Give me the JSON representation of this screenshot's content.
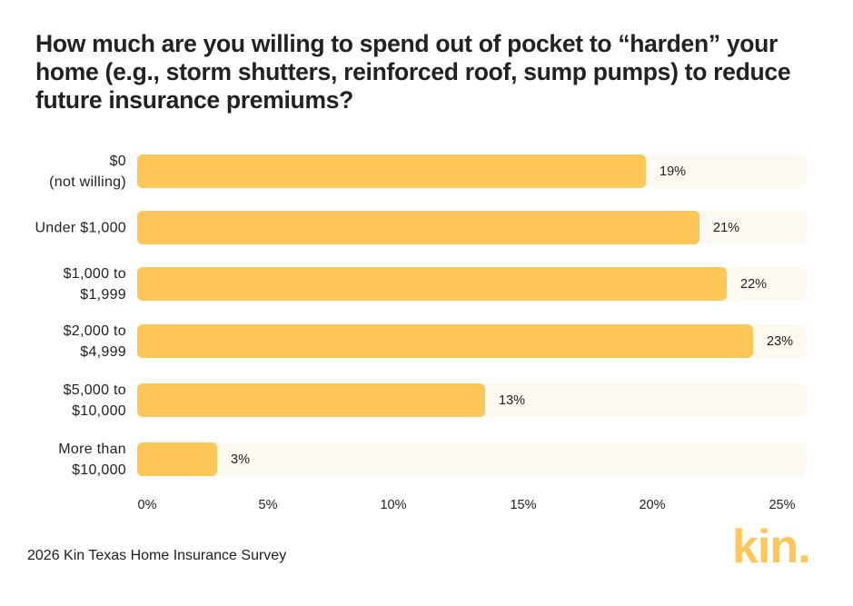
{
  "title": "How much are you willing to spend out of pocket to “harden” your home (e.g., storm shutters, reinforced roof, sump pumps) to reduce future insurance premiums?",
  "source": "2026 Kin Texas Home Insurance Survey",
  "logo": "kin.",
  "colors": {
    "bar": "#fec758",
    "track": "#fdf8f0",
    "logo": "#fec758",
    "text": "#222222"
  },
  "rows": [
    {
      "label": "$0\n(not willing)",
      "value": 19,
      "value_label": "19%"
    },
    {
      "label": "Under $1,000",
      "value": 21,
      "value_label": "21%"
    },
    {
      "label": "$1,000 to\n$1,999",
      "value": 22,
      "value_label": "22%"
    },
    {
      "label": "$2,000 to\n$4,999",
      "value": 23,
      "value_label": "23%"
    },
    {
      "label": "$5,000 to\n$10,000",
      "value": 13,
      "value_label": "13%"
    },
    {
      "label": "More than\n$10,000",
      "value": 3,
      "value_label": "3%"
    }
  ],
  "axis": {
    "ticks": [
      "0%",
      "5%",
      "10%",
      "15%",
      "20%",
      "25%"
    ]
  },
  "chart_data": {
    "type": "bar",
    "orientation": "horizontal",
    "title": "How much are you willing to spend out of pocket to “harden” your home (e.g., storm shutters, reinforced roof, sump pumps) to reduce future insurance premiums?",
    "categories": [
      "$0 (not willing)",
      "Under $1,000",
      "$1,000 to $1,999",
      "$2,000 to $4,999",
      "$5,000 to $10,000",
      "More than $10,000"
    ],
    "values": [
      19,
      21,
      22,
      23,
      13,
      3
    ],
    "data_labels": [
      "19%",
      "21%",
      "22%",
      "23%",
      "13%",
      "3%"
    ],
    "xlabel": "",
    "ylabel": "",
    "xlim": [
      0,
      25
    ],
    "x_ticks": [
      "0%",
      "5%",
      "10%",
      "15%",
      "20%",
      "25%"
    ],
    "grid": false,
    "legend": null,
    "source": "2026 Kin Texas Home Insurance Survey"
  }
}
